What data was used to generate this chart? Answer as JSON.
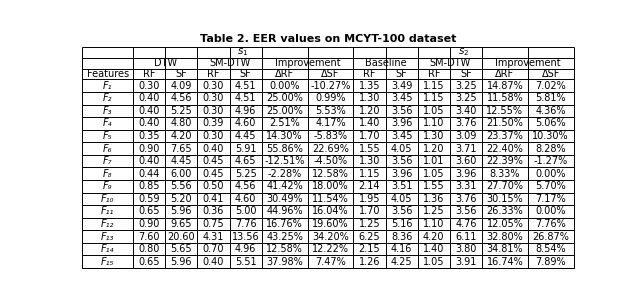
{
  "title": "Table 2. EER values on MCYT-100 dataset",
  "rows": [
    [
      "F₁",
      "0.30",
      "4.09",
      "0.30",
      "4.51",
      "0.00%",
      "-10.27%",
      "1.35",
      "3.49",
      "1.15",
      "3.25",
      "14.87%",
      "7.02%"
    ],
    [
      "F₂",
      "0.40",
      "4.56",
      "0.30",
      "4.51",
      "25.00%",
      "0.99%",
      "1.30",
      "3.45",
      "1.15",
      "3.25",
      "11.58%",
      "5.81%"
    ],
    [
      "F₃",
      "0.40",
      "5.25",
      "0.30",
      "4.96",
      "25.00%",
      "5.53%",
      "1.20",
      "3.56",
      "1.05",
      "3.40",
      "12.55%",
      "4.36%"
    ],
    [
      "F₄",
      "0.40",
      "4.80",
      "0.39",
      "4.60",
      "2.51%",
      "4.17%",
      "1.40",
      "3.96",
      "1.10",
      "3.76",
      "21.50%",
      "5.06%"
    ],
    [
      "F₅",
      "0.35",
      "4.20",
      "0.30",
      "4.45",
      "14.30%",
      "-5.83%",
      "1.70",
      "3.45",
      "1.30",
      "3.09",
      "23.37%",
      "10.30%"
    ],
    [
      "F₆",
      "0.90",
      "7.65",
      "0.40",
      "5.91",
      "55.86%",
      "22.69%",
      "1.55",
      "4.05",
      "1.20",
      "3.71",
      "22.40%",
      "8.28%"
    ],
    [
      "F₇",
      "0.40",
      "4.45",
      "0.45",
      "4.65",
      "-12.51%",
      "-4.50%",
      "1.30",
      "3.56",
      "1.01",
      "3.60",
      "22.39%",
      "-1.27%"
    ],
    [
      "F₈",
      "0.44",
      "6.00",
      "0.45",
      "5.25",
      "-2.28%",
      "12.58%",
      "1.15",
      "3.96",
      "1.05",
      "3.96",
      "8.33%",
      "0.00%"
    ],
    [
      "F₉",
      "0.85",
      "5.56",
      "0.50",
      "4.56",
      "41.42%",
      "18.00%",
      "2.14",
      "3.51",
      "1.55",
      "3.31",
      "27.70%",
      "5.70%"
    ],
    [
      "F₁₀",
      "0.59",
      "5.20",
      "0.41",
      "4.60",
      "30.49%",
      "11.54%",
      "1.95",
      "4.05",
      "1.36",
      "3.76",
      "30.15%",
      "7.17%"
    ],
    [
      "F₁₁",
      "0.65",
      "5.96",
      "0.36",
      "5.00",
      "44.96%",
      "16.04%",
      "1.70",
      "3.56",
      "1.25",
      "3.56",
      "26.33%",
      "0.00%"
    ],
    [
      "F₁₂",
      "0.90",
      "9.65",
      "0.75",
      "7.76",
      "16.76%",
      "19.60%",
      "1.25",
      "5.16",
      "1.10",
      "4.76",
      "12.05%",
      "7.76%"
    ],
    [
      "F₁₃",
      "7.60",
      "20.60",
      "4.31",
      "13.56",
      "43.25%",
      "34.20%",
      "6.25",
      "8.36",
      "4.20",
      "6.11",
      "32.80%",
      "26.87%"
    ],
    [
      "F₁₄",
      "0.80",
      "5.65",
      "0.70",
      "4.96",
      "12.58%",
      "12.22%",
      "2.15",
      "4.16",
      "1.40",
      "3.80",
      "34.81%",
      "8.54%"
    ],
    [
      "F₁₅",
      "0.65",
      "5.96",
      "0.40",
      "5.51",
      "37.98%",
      "7.47%",
      "1.26",
      "4.25",
      "1.05",
      "3.91",
      "16.74%",
      "7.89%"
    ]
  ],
  "bg_color": "#ffffff",
  "line_color": "#000000",
  "font_size": 7.0,
  "title_font_size": 8.0
}
